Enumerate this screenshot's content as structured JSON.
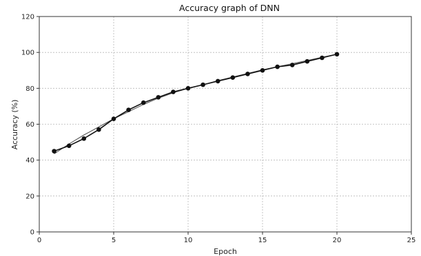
{
  "chart_data": {
    "type": "line",
    "title": "Accuracy graph of DNN",
    "xlabel": "Epoch",
    "ylabel": "Accuracy (%)",
    "xlim": [
      0,
      25
    ],
    "ylim": [
      0,
      120
    ],
    "xticks": [
      0,
      5,
      10,
      15,
      20,
      25
    ],
    "yticks": [
      0,
      20,
      40,
      60,
      80,
      100,
      120
    ],
    "grid": true,
    "legend": "none",
    "series": [
      {
        "marker": "circle",
        "color": "#111111",
        "x": [
          1,
          2,
          3,
          4,
          5,
          6,
          7,
          8,
          9,
          10,
          11,
          12,
          13,
          14,
          15,
          16,
          17,
          18,
          19,
          20
        ],
        "y": [
          45,
          48,
          52,
          57,
          63,
          68,
          72,
          75,
          78,
          80,
          82,
          84,
          86,
          88,
          90,
          92,
          93,
          95,
          97,
          99
        ]
      },
      {
        "marker": "none",
        "color": "#555555",
        "x": [
          1,
          2,
          3,
          4,
          5,
          6,
          7,
          8,
          9,
          10,
          11,
          12,
          13,
          14,
          15,
          16,
          17,
          18,
          19,
          20
        ],
        "y": [
          43.5,
          49,
          54,
          58.5,
          63,
          67,
          71,
          74.5,
          77.5,
          80,
          82,
          84.3,
          86.3,
          88.3,
          90.3,
          92,
          93.7,
          95.5,
          97.3,
          99
        ]
      }
    ]
  }
}
